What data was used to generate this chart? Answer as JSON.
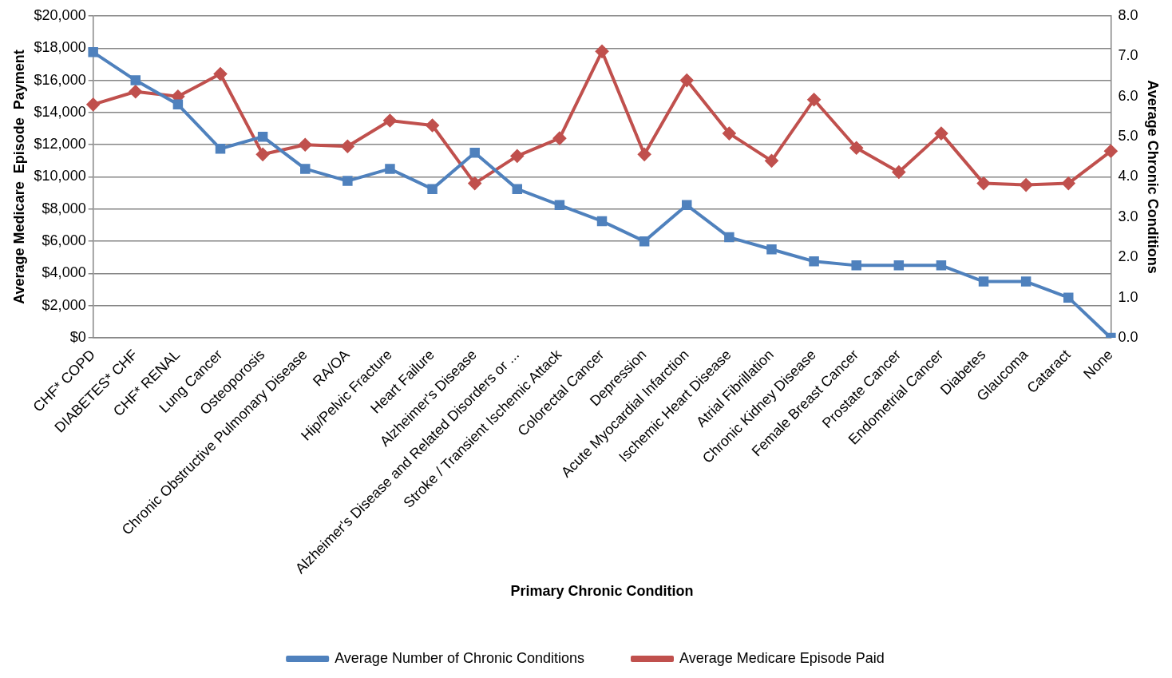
{
  "chart_data": {
    "type": "line",
    "categories": [
      "CHF* COPD",
      "DIABETES* CHF",
      "CHF* RENAL",
      "Lung Cancer",
      "Osteoporosis",
      "Chronic Obstructive Pulmonary Disease",
      "RA/OA",
      "Hip/Pelvic Fracture",
      "Heart Failure",
      "Alzheimer's Disease",
      "Alzheimer's Disease and Related Disorders or ...",
      "Stroke / Transient Ischemic Attack",
      "Colorectal Cancer",
      "Depression",
      "Acute Myocardial Infarction",
      "Ischemic Heart Disease",
      "Atrial Fibrillation",
      "Chronic Kidney Disease",
      "Female Breast Cancer",
      "Prostate Cancer",
      "Endometrial Cancer",
      "Diabetes",
      "Glaucoma",
      "Cataract",
      "None"
    ],
    "series": [
      {
        "name": "Average Number of Chronic Conditions",
        "color": "#4f81bd",
        "axis": "y2",
        "marker": "square",
        "values": [
          7.1,
          6.4,
          5.8,
          4.7,
          5.0,
          4.2,
          3.9,
          4.2,
          3.7,
          4.6,
          3.7,
          3.3,
          2.9,
          2.4,
          3.3,
          2.5,
          2.2,
          1.9,
          1.8,
          1.8,
          1.8,
          1.4,
          1.4,
          1.0,
          0
        ]
      },
      {
        "name": "Average Medicare Episode Paid",
        "color": "#c0504d",
        "marker": "diamond",
        "values": [
          14500,
          15300,
          15000,
          16400,
          11400,
          12000,
          11900,
          13500,
          13200,
          9600,
          11300,
          12400,
          17800,
          11400,
          16000,
          12700,
          11000,
          14800,
          11800,
          10300,
          12700,
          9600,
          9500,
          9600,
          11600
        ]
      }
    ],
    "xlabel": "Primary Chronic Condition",
    "ylabel": "Average Medicare  Episode  Payment",
    "y2label": "Average Chronic Conditions",
    "ylim": [
      0,
      20000
    ],
    "yticks": [
      {
        "value": 0,
        "label": "$0"
      },
      {
        "value": 2000,
        "label": "$2,000"
      },
      {
        "value": 4000,
        "label": "$4,000"
      },
      {
        "value": 6000,
        "label": "$6,000"
      },
      {
        "value": 8000,
        "label": "$8,000"
      },
      {
        "value": 10000,
        "label": "$10,000"
      },
      {
        "value": 12000,
        "label": "$12,000"
      },
      {
        "value": 14000,
        "label": "$14,000"
      },
      {
        "value": 16000,
        "label": "$16,000"
      },
      {
        "value": 18000,
        "label": "$18,000"
      },
      {
        "value": 20000,
        "label": "$20,000"
      }
    ],
    "y2lim": [
      0,
      8
    ],
    "y2ticks": [
      {
        "value": 0,
        "label": "0.0"
      },
      {
        "value": 1,
        "label": "1.0"
      },
      {
        "value": 2,
        "label": "2.0"
      },
      {
        "value": 3,
        "label": "3.0"
      },
      {
        "value": 4,
        "label": "4.0"
      },
      {
        "value": 5,
        "label": "5.0"
      },
      {
        "value": 6,
        "label": "6.0"
      },
      {
        "value": 7,
        "label": "7.0"
      },
      {
        "value": 8,
        "label": "8.0"
      }
    ],
    "grid": "y",
    "legend": "bottom"
  }
}
